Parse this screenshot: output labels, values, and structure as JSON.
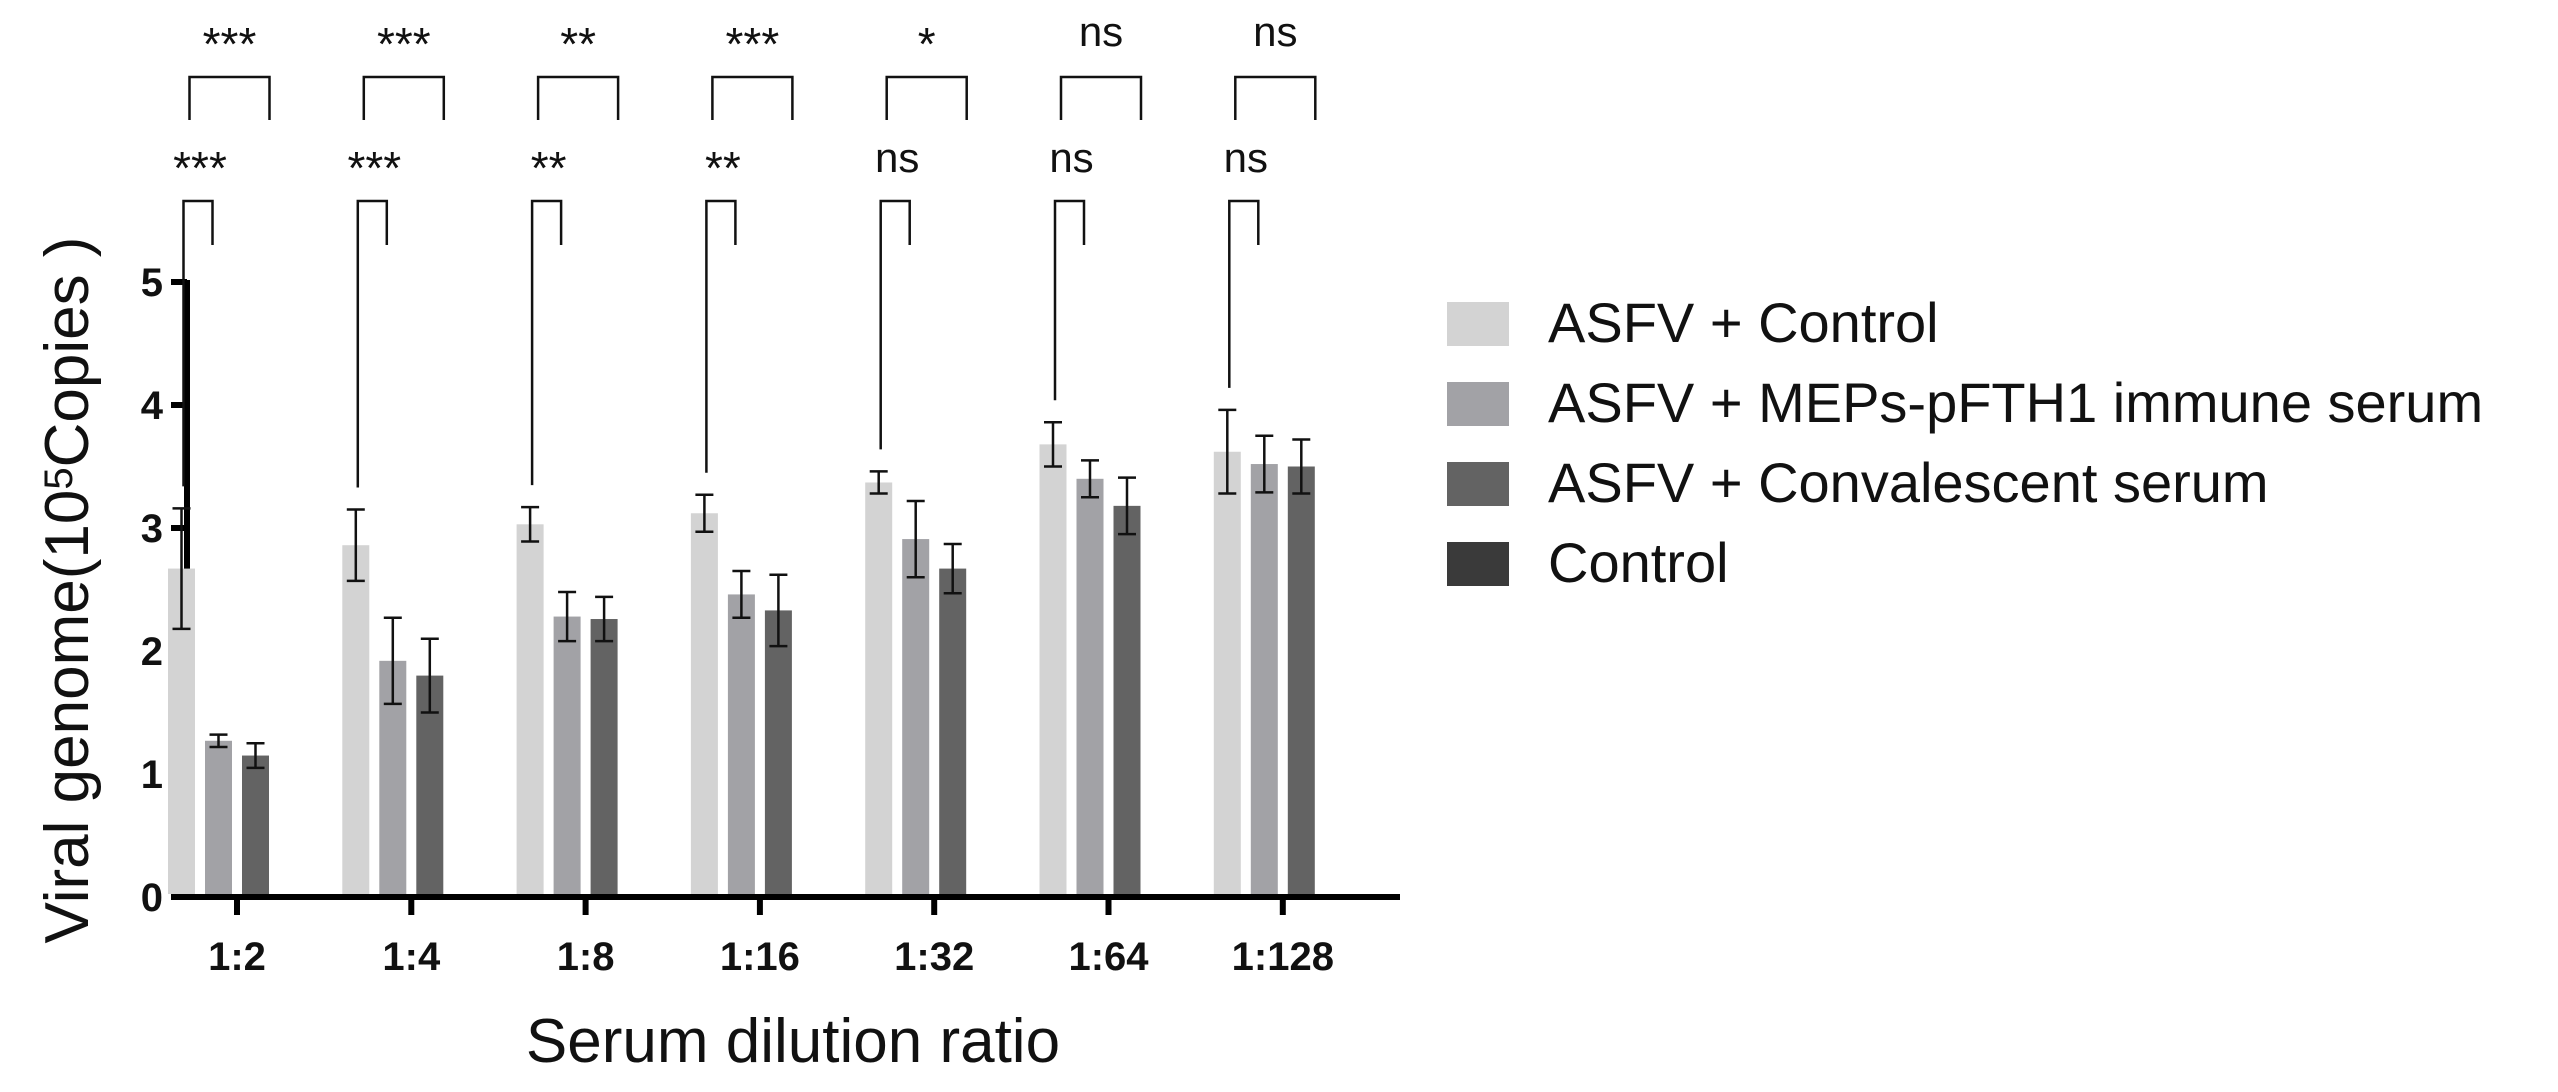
{
  "chart_data": {
    "type": "bar",
    "title": "",
    "xlabel": "Serum dilution ratio",
    "ylabel": {
      "main": "Viral genome(10",
      "sup": "5",
      "suffix": "Copies )"
    },
    "ylim": [
      0,
      5
    ],
    "yticks": [
      "0",
      "1",
      "2",
      "3",
      "4",
      "5"
    ],
    "categories": [
      "1:2",
      "1:4",
      "1:8",
      "1:16",
      "1:32",
      "1:64",
      "1:128"
    ],
    "series": [
      {
        "name": "ASFV + Control",
        "color": "#d3d3d3",
        "values": [
          2.67,
          2.86,
          3.03,
          3.12,
          3.37,
          3.68,
          3.62
        ],
        "errors": [
          0.49,
          0.29,
          0.14,
          0.15,
          0.09,
          0.18,
          0.34
        ]
      },
      {
        "name": "ASFV + MEPs-pFTH1 immune serum",
        "color": "#a2a2a6",
        "values": [
          1.27,
          1.92,
          2.28,
          2.46,
          2.91,
          3.4,
          3.52
        ],
        "errors": [
          0.05,
          0.35,
          0.2,
          0.19,
          0.31,
          0.15,
          0.23
        ]
      },
      {
        "name": "ASFV + Convalescent serum",
        "color": "#636363",
        "values": [
          1.15,
          1.8,
          2.26,
          2.33,
          2.67,
          3.18,
          3.5
        ],
        "errors": [
          0.1,
          0.3,
          0.18,
          0.29,
          0.2,
          0.23,
          0.22
        ]
      },
      {
        "name": "Control",
        "color": "#3a3a3a",
        "values": [
          0,
          0,
          0,
          0,
          0,
          0,
          0
        ],
        "errors": [
          0,
          0,
          0,
          0,
          0,
          0,
          0
        ]
      }
    ],
    "significance": {
      "upper_row": {
        "compares": "ASFV + Control vs ASFV + Convalescent serum",
        "labels": [
          "***",
          "***",
          "**",
          "***",
          "*",
          "ns",
          "ns"
        ]
      },
      "lower_row": {
        "compares": "ASFV + Control vs ASFV + MEPs-pFTH1 immune serum",
        "labels": [
          "***",
          "***",
          "**",
          "**",
          "ns",
          "ns",
          "ns"
        ]
      }
    },
    "legend_position": "right"
  }
}
